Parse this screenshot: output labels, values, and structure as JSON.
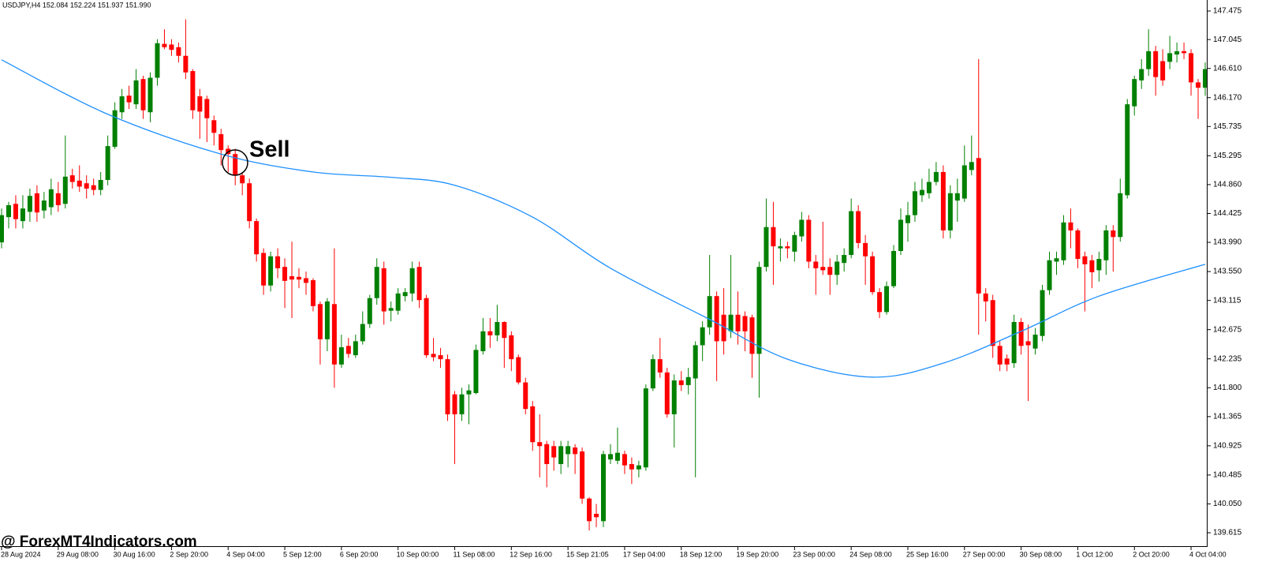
{
  "chart_data": {
    "type": "candlestick",
    "title": "USDJPY,H4  152.084 152.224 151.937 151.990",
    "watermark": "@ ForexMT4Indicators.com",
    "annotation": "Sell",
    "categories": [
      "28 Aug 2024",
      null,
      null,
      null,
      null,
      null,
      null,
      null,
      "29 Aug 08:00",
      null,
      null,
      null,
      null,
      null,
      null,
      null,
      "30 Aug 16:00",
      null,
      null,
      null,
      null,
      null,
      null,
      null,
      "2 Sep 20:00",
      null,
      null,
      null,
      null,
      null,
      null,
      null,
      "4 Sep 04:00",
      null,
      null,
      null,
      null,
      null,
      null,
      null,
      "5 Sep 12:00",
      null,
      null,
      null,
      null,
      null,
      null,
      null,
      "6 Sep 20:00",
      null,
      null,
      null,
      null,
      null,
      null,
      null,
      "10 Sep 00:00",
      null,
      null,
      null,
      null,
      null,
      null,
      null,
      "11 Sep 08:00",
      null,
      null,
      null,
      null,
      null,
      null,
      null,
      "12 Sep 16:00",
      null,
      null,
      null,
      null,
      null,
      null,
      null,
      "15 Sep 21:05",
      null,
      null,
      null,
      null,
      null,
      null,
      null,
      "17 Sep 04:00",
      null,
      null,
      null,
      null,
      null,
      null,
      null,
      "18 Sep 12:00",
      null,
      null,
      null,
      null,
      null,
      null,
      null,
      "19 Sep 20:00",
      null,
      null,
      null,
      null,
      null,
      null,
      null,
      "23 Sep 00:00",
      null,
      null,
      null,
      null,
      null,
      null,
      null,
      "24 Sep 08:00",
      null,
      null,
      null,
      null,
      null,
      null,
      null,
      "25 Sep 16:00",
      null,
      null,
      null,
      null,
      null,
      null,
      null,
      "27 Sep 00:00",
      null,
      null,
      null,
      null,
      null,
      null,
      null,
      "30 Sep 08:00",
      null,
      null,
      null,
      null,
      null,
      null,
      null,
      "1 Oct 12:00",
      null,
      null,
      null,
      null,
      null,
      null,
      null,
      "2 Oct 20:00",
      null,
      null,
      null,
      null,
      null,
      null,
      null,
      "4 Oct 04:00",
      null,
      null
    ],
    "open": [
      143.99,
      144.37,
      144.57,
      144.31,
      144.45,
      144.73,
      144.47,
      144.52,
      144.73,
      144.57,
      145.0,
      144.92,
      144.88,
      144.85,
      144.78,
      144.93,
      145.43,
      145.95,
      146.2,
      146.07,
      146.45,
      145.95,
      146.47,
      146.98,
      146.97,
      146.93,
      146.8,
      146.57,
      146.19,
      146.15,
      145.83,
      145.62,
      145.4,
      145.32,
      145.0,
      144.88,
      144.31,
      143.83,
      143.34,
      143.78,
      143.62,
      143.48,
      143.47,
      143.45,
      143.42,
      143.06,
      142.53,
      143.06,
      142.15,
      142.43,
      142.29,
      142.5,
      142.76,
      143.15,
      143.6,
      142.96,
      142.96,
      143.18,
      143.22,
      143.62,
      143.15,
      142.31,
      142.29,
      142.23,
      141.7,
      141.4,
      141.7,
      141.72,
      142.35,
      142.65,
      142.59,
      142.79,
      142.59,
      142.26,
      141.88,
      141.52,
      140.98,
      140.95,
      140.92,
      140.65,
      140.8,
      140.9,
      140.84,
      140.13,
      139.9,
      139.79,
      140.72,
      140.7,
      140.8,
      140.65,
      140.57,
      140.6,
      141.79,
      142.23,
      142.03,
      141.4,
      141.91,
      141.84,
      141.94,
      142.44,
      142.71,
      143.18,
      142.9,
      142.65,
      142.9,
      142.88,
      142.86,
      142.31,
      143.62,
      144.22,
      143.9,
      143.93,
      143.85,
      144.08,
      144.33,
      143.7,
      143.62,
      143.62,
      143.5,
      143.68,
      143.8,
      144.46,
      143.98,
      143.78,
      143.24,
      142.94,
      143.33,
      143.86,
      144.28,
      144.4,
      144.7,
      144.73,
      144.9,
      145.05,
      144.17,
      144.62,
      144.65,
      145.08,
      145.26,
      143.22,
      143.12,
      142.43,
      142.24,
      142.17,
      142.79,
      142.5,
      142.39,
      142.58,
      143.27,
      143.7,
      143.72,
      144.29,
      144.17,
      143.78,
      143.72,
      143.57,
      143.72,
      144.17,
      144.07,
      144.7,
      146.04,
      146.43,
      146.6,
      146.87,
      146.72,
      146.71,
      146.82,
      146.87,
      146.84,
      146.4,
      146.32
    ],
    "high": [
      144.5,
      144.6,
      144.7,
      144.7,
      144.8,
      144.85,
      144.75,
      144.95,
      144.9,
      145.6,
      145.1,
      145.15,
      145.0,
      144.95,
      145.05,
      145.6,
      146.1,
      146.3,
      146.35,
      146.6,
      146.5,
      146.55,
      147.05,
      147.2,
      147.05,
      147.0,
      147.35,
      146.6,
      146.3,
      146.2,
      145.9,
      145.7,
      145.45,
      145.4,
      145.05,
      144.95,
      144.35,
      143.9,
      143.85,
      143.9,
      143.75,
      144.0,
      143.6,
      143.55,
      143.45,
      143.1,
      143.15,
      143.9,
      142.6,
      142.55,
      142.6,
      142.95,
      143.2,
      143.75,
      143.7,
      143.1,
      143.3,
      143.3,
      143.7,
      143.7,
      143.2,
      142.55,
      142.4,
      142.3,
      141.75,
      141.8,
      141.85,
      142.45,
      142.85,
      142.85,
      143.05,
      142.8,
      142.65,
      142.3,
      141.95,
      141.6,
      141.4,
      141.0,
      141.0,
      141.0,
      141.0,
      140.95,
      140.9,
      140.15,
      140.05,
      140.85,
      140.95,
      141.2,
      140.85,
      140.75,
      140.7,
      141.85,
      142.3,
      142.55,
      142.1,
      142.0,
      142.05,
      142.1,
      142.5,
      142.8,
      143.8,
      143.25,
      143.3,
      143.8,
      143.25,
      142.95,
      142.9,
      143.7,
      144.65,
      144.6,
      144.05,
      144.0,
      144.15,
      144.45,
      144.4,
      143.8,
      144.3,
      143.75,
      143.8,
      143.9,
      144.65,
      144.55,
      144.1,
      143.85,
      143.3,
      143.4,
      143.95,
      144.5,
      144.6,
      144.9,
      144.95,
      145.1,
      145.2,
      145.15,
      144.85,
      144.95,
      145.45,
      145.6,
      146.75,
      143.3,
      143.2,
      142.5,
      142.3,
      142.9,
      142.85,
      142.75,
      142.7,
      143.35,
      143.85,
      143.85,
      144.4,
      144.5,
      144.2,
      143.85,
      143.8,
      143.85,
      144.25,
      144.25,
      144.95,
      146.15,
      146.5,
      146.75,
      147.2,
      146.95,
      146.9,
      147.1,
      147.0,
      147.0,
      146.9,
      146.45,
      146.7
    ],
    "low": [
      143.9,
      144.2,
      144.2,
      144.2,
      144.3,
      144.3,
      144.35,
      144.4,
      144.45,
      144.5,
      144.8,
      144.75,
      144.65,
      144.7,
      144.7,
      144.85,
      145.4,
      145.85,
      146.0,
      146.0,
      145.85,
      145.8,
      146.35,
      146.9,
      146.8,
      146.7,
      146.45,
      145.85,
      145.55,
      145.5,
      145.45,
      145.15,
      145.05,
      144.85,
      144.7,
      144.2,
      143.7,
      143.2,
      143.25,
      143.45,
      143.0,
      142.85,
      143.3,
      143.2,
      142.95,
      142.15,
      142.35,
      141.8,
      142.1,
      142.25,
      142.25,
      142.45,
      142.7,
      143.05,
      142.75,
      142.8,
      142.9,
      143.1,
      143.1,
      143.0,
      142.25,
      142.2,
      142.1,
      141.3,
      140.65,
      141.3,
      141.25,
      141.7,
      142.3,
      142.4,
      142.5,
      142.1,
      142.05,
      141.85,
      141.4,
      140.85,
      140.45,
      140.3,
      140.55,
      140.5,
      140.6,
      140.5,
      140.05,
      139.65,
      139.7,
      139.7,
      140.65,
      140.65,
      140.5,
      140.35,
      140.45,
      140.55,
      141.75,
      141.95,
      141.35,
      140.9,
      141.75,
      141.7,
      140.45,
      142.2,
      142.6,
      141.9,
      142.3,
      142.55,
      142.45,
      142.35,
      141.95,
      141.65,
      143.55,
      143.35,
      143.7,
      143.75,
      143.7,
      144.0,
      143.6,
      143.2,
      143.5,
      143.2,
      143.35,
      143.55,
      143.75,
      143.9,
      143.35,
      143.2,
      142.85,
      142.9,
      143.3,
      143.8,
      144.0,
      144.3,
      144.6,
      144.65,
      144.85,
      144.05,
      144.05,
      144.3,
      144.6,
      145.0,
      142.6,
      142.8,
      142.25,
      142.05,
      142.05,
      142.1,
      142.3,
      141.6,
      142.3,
      142.5,
      143.2,
      143.5,
      143.65,
      143.9,
      143.6,
      142.95,
      143.3,
      143.4,
      143.5,
      143.55,
      144.0,
      144.65,
      145.9,
      146.3,
      146.5,
      146.2,
      146.35,
      146.6,
      146.7,
      146.75,
      146.2,
      145.85,
      146.2
    ],
    "close": [
      144.4,
      144.55,
      144.34,
      144.5,
      144.69,
      144.44,
      144.62,
      144.79,
      144.55,
      144.98,
      144.9,
      144.83,
      144.8,
      144.78,
      144.93,
      145.44,
      145.98,
      146.19,
      146.1,
      146.43,
      145.98,
      146.47,
      146.99,
      146.93,
      146.89,
      146.8,
      146.55,
      145.98,
      145.96,
      145.86,
      145.64,
      145.38,
      145.32,
      145.0,
      144.88,
      144.31,
      143.81,
      143.34,
      143.78,
      143.6,
      143.41,
      143.43,
      143.43,
      143.38,
      143.03,
      142.53,
      143.1,
      142.15,
      142.41,
      142.31,
      142.5,
      142.76,
      143.15,
      143.62,
      142.95,
      143.0,
      143.22,
      143.24,
      143.6,
      143.12,
      142.29,
      142.26,
      142.23,
      141.4,
      141.4,
      141.7,
      141.76,
      142.37,
      142.65,
      142.59,
      142.79,
      142.55,
      142.23,
      141.88,
      141.48,
      140.98,
      140.92,
      140.65,
      140.75,
      140.92,
      140.92,
      140.8,
      140.13,
      139.79,
      139.85,
      140.8,
      140.8,
      140.82,
      140.63,
      140.57,
      140.63,
      141.79,
      142.23,
      142.03,
      141.4,
      141.91,
      141.84,
      141.96,
      142.44,
      142.71,
      143.18,
      142.5,
      142.5,
      142.9,
      142.65,
      142.65,
      142.31,
      143.62,
      144.22,
      143.93,
      143.93,
      143.9,
      144.1,
      144.33,
      143.7,
      143.6,
      143.57,
      143.5,
      143.7,
      143.8,
      144.46,
      143.98,
      143.78,
      143.24,
      142.94,
      143.33,
      143.86,
      144.33,
      144.4,
      144.76,
      144.78,
      144.9,
      145.05,
      144.17,
      144.73,
      144.73,
      145.15,
      145.2,
      143.22,
      143.1,
      142.43,
      142.15,
      142.15,
      142.79,
      142.43,
      142.44,
      142.6,
      143.27,
      143.72,
      143.75,
      144.29,
      144.17,
      143.74,
      143.66,
      143.54,
      143.74,
      144.17,
      144.07,
      144.73,
      146.07,
      146.45,
      146.6,
      146.87,
      146.48,
      146.43,
      146.84,
      146.87,
      146.84,
      146.4,
      146.32,
      146.6
    ],
    "up_color": "#008000",
    "down_color": "#ff0000",
    "overlay": {
      "type": "line",
      "color": "#1e90ff",
      "x": [
        0,
        15,
        31,
        44,
        55,
        64,
        75,
        86,
        100,
        111,
        123,
        133,
        144,
        155,
        170
      ],
      "values": [
        146.74,
        145.92,
        145.32,
        145.05,
        144.97,
        144.85,
        144.37,
        143.6,
        142.83,
        142.23,
        141.96,
        142.17,
        142.65,
        143.18,
        143.66
      ]
    },
    "ylim": [
      139.437,
      147.641
    ],
    "yticks": [
      147.475,
      147.045,
      {
        "value": 146.61,
        "label": "146.610"
      },
      {
        "value": 146.17,
        "label": "146.170"
      },
      145.735,
      145.295,
      {
        "value": 144.86,
        "label": "144.860"
      },
      144.425,
      {
        "value": 143.99,
        "label": "143.990"
      },
      {
        "value": 143.55,
        "label": "143.550"
      },
      143.115,
      142.675,
      142.235,
      {
        "value": 141.8,
        "label": "141.800"
      },
      141.365,
      140.925,
      140.485,
      {
        "value": 140.05,
        "label": "140.050"
      },
      139.615
    ]
  }
}
